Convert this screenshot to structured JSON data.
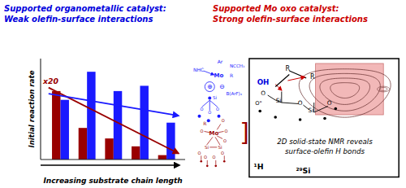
{
  "chart_data": {
    "type": "bar",
    "categories": [
      null,
      null,
      null,
      null,
      null
    ],
    "series": [
      {
        "color": "#990000",
        "values": [
          0.78,
          0.36,
          0.24,
          0.15,
          0.05
        ],
        "trend": [
          0.82,
          0.07
        ]
      },
      {
        "color": "#1a1aff",
        "values": [
          0.68,
          1.0,
          0.78,
          0.84,
          0.42
        ],
        "trend": [
          0.75,
          0.5
        ]
      }
    ],
    "ylim": [
      0,
      1.15
    ],
    "yticks": [],
    "tick_labels": false,
    "grid": false,
    "x_label": "Increasing substrate chain length",
    "y_label": "Initial reaction rate",
    "annotations": [
      {
        "text": "Supported organometallic catalyst:\nWeak olefin-surface interactions",
        "color": "#0000dd"
      },
      {
        "text": "Supported Mo oxo catalyst:\nStrong olefin-surface interactions",
        "color": "#cc0000"
      },
      {
        "text": "x20",
        "color": "#990000"
      },
      {
        "text": "Ar",
        "color": "#1a1aff"
      },
      {
        "text": "NCCH₃",
        "color": "#1a1aff"
      },
      {
        "text": "NHC",
        "color": "#1a1aff"
      },
      {
        "text": "Mo",
        "color": "#1a1aff"
      },
      {
        "text": "R",
        "color": "#1a1aff"
      },
      {
        "text": "⊕",
        "color": "#1a1aff"
      },
      {
        "text": "⊖",
        "color": "#1a1aff"
      },
      {
        "text": "B(ArF)₄",
        "color": "#1a1aff"
      },
      {
        "text": "Si",
        "color": "#1a1aff"
      },
      {
        "text": "O",
        "color": "#1a1aff"
      },
      {
        "text": "O",
        "color": "#1a1aff"
      },
      {
        "text": "O",
        "color": "#1a1aff"
      },
      {
        "text": "]",
        "color": "#990000"
      },
      {
        "text": "R",
        "color": "#990000"
      },
      {
        "text": "Mo",
        "color": "#990000"
      },
      {
        "text": "O",
        "color": "#990000"
      },
      {
        "text": "O",
        "color": "#990000"
      },
      {
        "text": "O",
        "color": "#990000"
      },
      {
        "text": "O",
        "color": "#990000"
      },
      {
        "text": "Si",
        "color": "#990000"
      },
      {
        "text": "Si",
        "color": "#990000"
      },
      {
        "text": "O",
        "color": "#990000"
      },
      {
        "text": "O",
        "color": "#990000"
      },
      {
        "text": "O",
        "color": "#990000"
      },
      {
        "text": "O",
        "color": "#990000"
      },
      {
        "text": "OH",
        "color": "#0000dd"
      },
      {
        "text": "R",
        "color": "#000000"
      },
      {
        "text": "R",
        "color": "#000000"
      },
      {
        "text": "O",
        "color": "#000000"
      },
      {
        "text": "Si",
        "color": "#000000"
      },
      {
        "text": "O",
        "color": "#000000"
      },
      {
        "text": "Si",
        "color": "#000000"
      },
      {
        "text": "O",
        "color": "#000000"
      },
      {
        "text": "O\"",
        "color": "#000000"
      },
      {
        "text": "2D solid-state NMR reveals\nsurface-olefin H bonds",
        "color": "#000000"
      },
      {
        "text": "¹H",
        "color": "#000000"
      },
      {
        "text": "²⁹Si",
        "color": "#000000"
      }
    ]
  }
}
